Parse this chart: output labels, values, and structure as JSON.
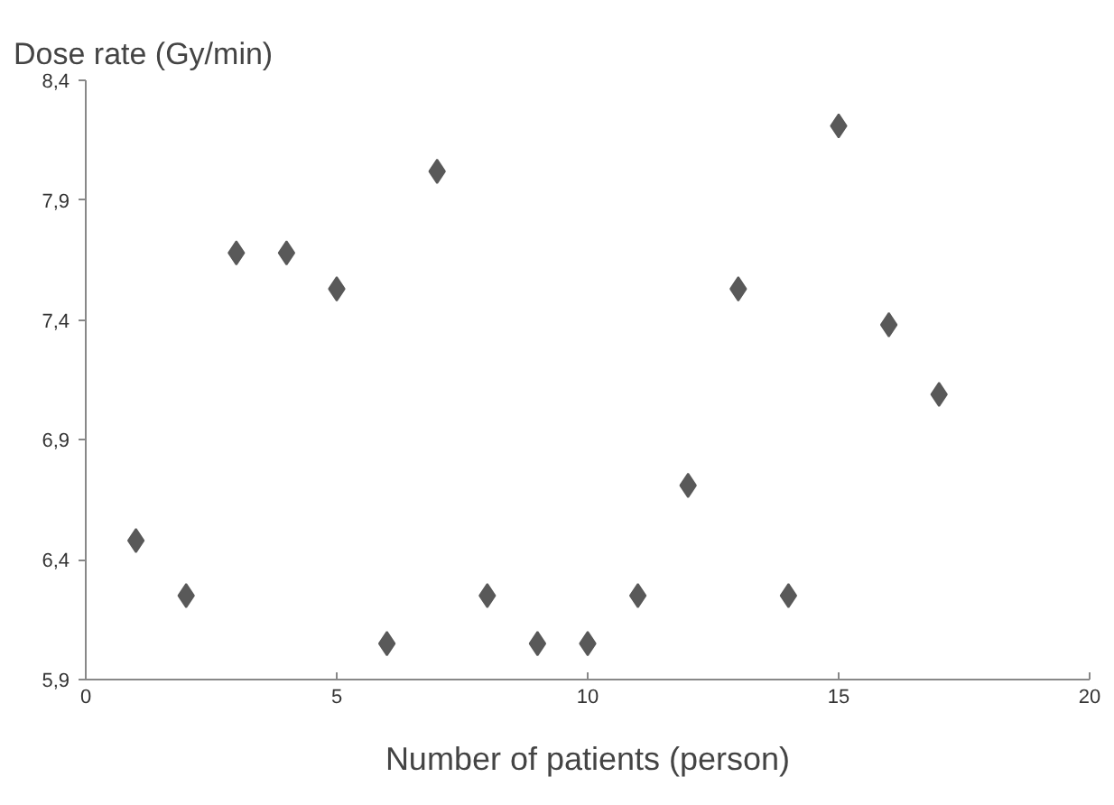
{
  "chart_data": {
    "type": "scatter",
    "xlabel": "Number of patients (person)",
    "ylabel": "Dose rate (Gy/min)",
    "x": [
      1,
      2,
      3,
      4,
      5,
      6,
      7,
      8,
      9,
      10,
      11,
      12,
      13,
      14,
      15,
      16,
      17
    ],
    "values": [
      6.48,
      6.25,
      7.68,
      7.68,
      7.53,
      6.05,
      8.02,
      6.25,
      6.05,
      6.05,
      6.25,
      6.71,
      7.53,
      6.25,
      8.21,
      7.38,
      7.09
    ],
    "color": "#595959",
    "marker": "diamond",
    "grid": false,
    "legend": false,
    "xlim": [
      0,
      20
    ],
    "xticks": [
      0,
      5,
      10,
      15,
      20
    ],
    "ylim": [
      5.9,
      8.4
    ],
    "yticks": [
      {
        "value": 5.9,
        "label": "5,9"
      },
      {
        "value": 6.4,
        "label": "6,4"
      },
      {
        "value": 6.9,
        "label": "6,9"
      },
      {
        "value": 7.4,
        "label": "7,4"
      },
      {
        "value": 7.9,
        "label": "7,9"
      },
      {
        "value": 8.4,
        "label": "8,4"
      }
    ]
  }
}
